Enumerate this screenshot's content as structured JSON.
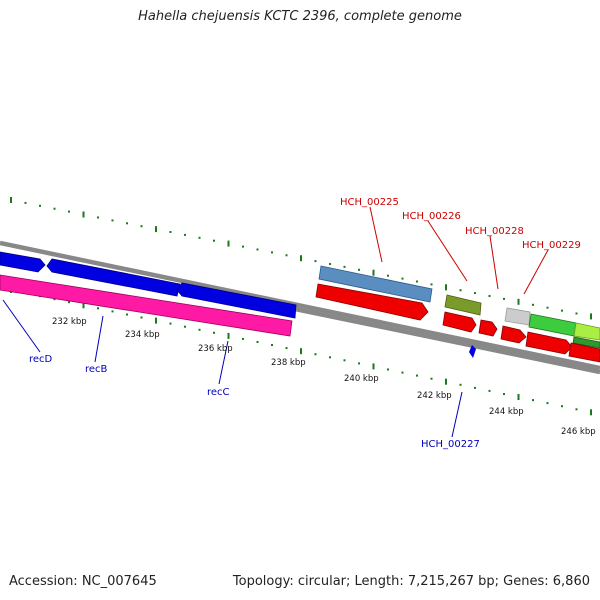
{
  "title": "Hahella chejuensis KCTC 2396, complete genome",
  "footer": {
    "accession": "Accession: NC_007645",
    "summary": "Topology: circular; Length: 7,215,267 bp; Genes: 6,860"
  },
  "ticks": [
    "232 kbp",
    "234 kbp",
    "236 kbp",
    "238 kbp",
    "240 kbp",
    "242 kbp",
    "244 kbp",
    "246 kbp"
  ],
  "gene_labels_top": [
    "HCH_00225",
    "HCH_00226",
    "HCH_00228",
    "HCH_00229"
  ],
  "gene_labels_bottom": [
    "recD",
    "recB",
    "recC",
    "HCH_00227"
  ],
  "colors": {
    "backbone": "#888888",
    "blue_gene": "#0000e0",
    "magenta_gene": "#ff1aa6",
    "red_gene": "#ee0000",
    "steelblue_gene": "#5a8ec0",
    "olive_gene": "#7a9a2a",
    "gray_gene": "#cccccc",
    "green_gene": "#3dcc3d",
    "lime_gene": "#aaee44",
    "tick_green": "#1a7a1a",
    "label_red": "#cc0000",
    "label_blue": "#0000bb"
  }
}
